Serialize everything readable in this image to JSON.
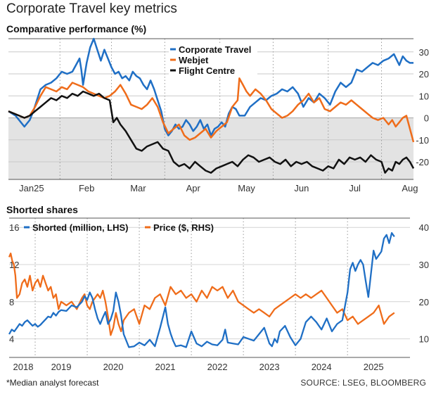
{
  "title": "Corporate Travel key metrics",
  "footnote": "*Median analyst forecast",
  "source": "SOURCE: LSEG, BLOOMBERG",
  "colors": {
    "corporate_travel": "#1f6fc5",
    "webjet": "#ef6c1a",
    "flight_centre": "#111111",
    "shorted": "#1f6fc5",
    "price": "#ef6c1a",
    "negative_band": "#e3e3e3"
  },
  "chart_data": [
    {
      "type": "line",
      "title": "Comparative performance (%)",
      "xlabel": "",
      "ylabel": "",
      "ylim": [
        -28,
        36
      ],
      "x_range": [
        0,
        228
      ],
      "y_ticks": [
        30,
        20,
        10,
        0,
        -10,
        -20
      ],
      "y_tick_labels": [
        "30",
        "20",
        "10",
        "0",
        "-10",
        "-20"
      ],
      "x_ticks": [
        {
          "label": "Jan25",
          "x": 13
        },
        {
          "label": "Feb",
          "x": 44
        },
        {
          "label": "Mar",
          "x": 73
        },
        {
          "label": "Apr",
          "x": 104
        },
        {
          "label": "May",
          "x": 134
        },
        {
          "label": "Jun",
          "x": 165
        },
        {
          "label": "Jul",
          "x": 195
        },
        {
          "label": "Aug",
          "x": 226
        }
      ],
      "month_dividers": [
        29,
        58,
        88,
        119,
        149,
        180,
        210
      ],
      "shade_below_zero": true,
      "legend_position": "top-right",
      "series": [
        {
          "name": "Corporate Travel",
          "color": "#1f6fc5",
          "x": [
            0,
            4,
            7,
            9,
            12,
            14,
            16,
            18,
            21,
            24,
            27,
            30,
            33,
            36,
            38,
            40,
            41,
            42,
            44,
            46,
            48,
            50,
            52,
            54,
            56,
            58,
            60,
            62,
            64,
            66,
            68,
            70,
            72,
            74,
            76,
            78,
            80,
            82,
            84,
            86,
            88,
            90,
            92,
            94,
            96,
            98,
            100,
            102,
            104,
            106,
            108,
            110,
            112,
            114,
            116,
            118,
            120,
            122,
            124,
            126,
            128,
            130,
            133,
            136,
            139,
            142,
            145,
            148,
            151,
            154,
            157,
            160,
            163,
            166,
            169,
            172,
            175,
            178,
            181,
            184,
            187,
            190,
            193,
            196,
            199,
            202,
            205,
            208,
            211,
            214,
            217,
            220,
            222,
            224,
            226,
            228
          ],
          "values": [
            3,
            1,
            -2,
            -4,
            -1,
            3,
            8,
            13,
            15,
            16,
            18,
            21,
            20,
            21,
            24,
            27,
            22,
            15,
            25,
            32,
            36,
            31,
            26,
            31,
            27,
            23,
            20,
            21,
            18,
            19,
            17,
            21,
            19,
            18,
            15,
            13,
            17,
            13,
            8,
            3,
            -5,
            -8,
            -6,
            -3,
            -5,
            -4,
            -1,
            -3,
            -6,
            -4,
            -1,
            -5,
            -3,
            -8,
            -5,
            -4,
            -2,
            -4,
            2,
            5,
            4,
            1,
            1,
            5,
            7,
            9,
            8,
            10,
            11,
            13,
            12,
            14,
            11,
            5,
            9,
            7,
            11,
            9,
            6,
            12,
            16,
            14,
            16,
            22,
            21,
            23,
            25,
            24,
            26,
            27,
            29,
            24,
            28,
            26,
            25,
            25
          ]
        },
        {
          "name": "Webjet",
          "color": "#ef6c1a",
          "x": [
            0,
            3,
            6,
            9,
            12,
            15,
            18,
            21,
            24,
            27,
            30,
            33,
            36,
            39,
            42,
            45,
            48,
            51,
            54,
            57,
            60,
            63,
            66,
            69,
            72,
            75,
            78,
            81,
            84,
            87,
            90,
            93,
            96,
            99,
            102,
            105,
            108,
            111,
            114,
            117,
            120,
            123,
            126,
            129,
            130,
            132,
            134,
            136,
            139,
            142,
            145,
            148,
            151,
            154,
            157,
            160,
            163,
            166,
            169,
            172,
            175,
            178,
            181,
            184,
            187,
            190,
            193,
            196,
            199,
            202,
            205,
            208,
            211,
            214,
            216,
            218,
            220,
            222,
            224,
            226,
            228
          ],
          "values": [
            3,
            2,
            1,
            0,
            1,
            5,
            10,
            14,
            13,
            12,
            14,
            13,
            16,
            15,
            14,
            12,
            11,
            10,
            9,
            10,
            12,
            15,
            11,
            6,
            5,
            4,
            6,
            9,
            5,
            -2,
            -7,
            -5,
            -3,
            -8,
            -10,
            -9,
            -7,
            -5,
            -9,
            -6,
            -4,
            -2,
            5,
            8,
            18,
            15,
            12,
            10,
            13,
            11,
            8,
            4,
            2,
            0,
            1,
            3,
            6,
            8,
            11,
            7,
            9,
            4,
            3,
            5,
            7,
            6,
            8,
            6,
            4,
            2,
            0,
            -1,
            0,
            -3,
            -1,
            -4,
            -2,
            0,
            1,
            -5,
            -11
          ]
        },
        {
          "name": "Flight Centre",
          "color": "#111111",
          "x": [
            0,
            3,
            6,
            9,
            12,
            15,
            18,
            21,
            24,
            27,
            30,
            33,
            36,
            39,
            42,
            45,
            48,
            51,
            54,
            57,
            59,
            61,
            63,
            66,
            69,
            72,
            75,
            78,
            81,
            84,
            87,
            90,
            93,
            96,
            99,
            102,
            105,
            108,
            111,
            114,
            117,
            120,
            123,
            126,
            129,
            132,
            135,
            138,
            141,
            144,
            147,
            150,
            153,
            156,
            159,
            162,
            165,
            168,
            171,
            174,
            177,
            180,
            183,
            186,
            189,
            192,
            195,
            198,
            201,
            204,
            207,
            210,
            212,
            214,
            216,
            218,
            220,
            222,
            224,
            226,
            228
          ],
          "values": [
            3,
            2,
            1,
            0,
            1,
            3,
            5,
            7,
            9,
            8,
            10,
            9,
            11,
            10,
            12,
            11,
            10,
            11,
            9,
            8,
            -2,
            0,
            -3,
            -6,
            -10,
            -14,
            -15,
            -13,
            -12,
            -11,
            -14,
            -15,
            -20,
            -22,
            -21,
            -23,
            -20,
            -22,
            -24,
            -25,
            -23,
            -22,
            -21,
            -20,
            -22,
            -19,
            -17,
            -18,
            -20,
            -19,
            -18,
            -20,
            -21,
            -19,
            -22,
            -20,
            -21,
            -20,
            -22,
            -23,
            -24,
            -22,
            -23,
            -19,
            -21,
            -18,
            -19,
            -18,
            -20,
            -17,
            -19,
            -20,
            -25,
            -23,
            -24,
            -20,
            -21,
            -19,
            -18,
            -20,
            -23
          ]
        }
      ]
    },
    {
      "type": "line",
      "title": "Shorted shares",
      "xlabel": "",
      "ylabel": "",
      "x_range": [
        2018.0,
        2025.7
      ],
      "ylim_left": [
        2,
        17
      ],
      "ylim_right": [
        5,
        42.5
      ],
      "y_ticks_left": [
        16,
        12,
        8,
        4
      ],
      "y_tick_labels_left": [
        "16",
        "12",
        "8",
        "4"
      ],
      "y_ticks_right": [
        40,
        30,
        20,
        10
      ],
      "y_tick_labels_right": [
        "40",
        "30",
        "20",
        "10"
      ],
      "x_ticks": [
        {
          "label": "2018",
          "x": 2018.0
        },
        {
          "label": "2019",
          "x": 2019.0
        },
        {
          "label": "2020",
          "x": 2020.0
        },
        {
          "label": "2021",
          "x": 2021.0
        },
        {
          "label": "2022",
          "x": 2022.0
        },
        {
          "label": "2023",
          "x": 2023.0
        },
        {
          "label": "2024",
          "x": 2024.0
        },
        {
          "label": "2025",
          "x": 2025.0
        }
      ],
      "year_dividers": [
        2018.5,
        2019.5,
        2020.5,
        2021.5,
        2022.5,
        2023.5,
        2024.5
      ],
      "legend_position": "top-left",
      "series": [
        {
          "name": "Shorted (million, LHS)",
          "color": "#1f6fc5",
          "axis": "left",
          "x": [
            2018.0,
            2018.05,
            2018.1,
            2018.15,
            2018.2,
            2018.25,
            2018.3,
            2018.35,
            2018.4,
            2018.45,
            2018.5,
            2018.55,
            2018.6,
            2018.65,
            2018.7,
            2018.75,
            2018.8,
            2018.85,
            2018.9,
            2018.95,
            2019.0,
            2019.1,
            2019.2,
            2019.3,
            2019.4,
            2019.45,
            2019.5,
            2019.55,
            2019.6,
            2019.65,
            2019.7,
            2019.75,
            2019.8,
            2019.85,
            2019.9,
            2019.95,
            2020.0,
            2020.05,
            2020.1,
            2020.15,
            2020.2,
            2020.3,
            2020.4,
            2020.5,
            2020.6,
            2020.7,
            2020.8,
            2020.9,
            2021.0,
            2021.05,
            2021.1,
            2021.15,
            2021.2,
            2021.3,
            2021.4,
            2021.5,
            2021.6,
            2021.7,
            2021.8,
            2021.9,
            2022.0,
            2022.1,
            2022.15,
            2022.2,
            2022.3,
            2022.4,
            2022.5,
            2022.6,
            2022.7,
            2022.8,
            2022.9,
            2023.0,
            2023.05,
            2023.1,
            2023.15,
            2023.2,
            2023.3,
            2023.4,
            2023.5,
            2023.6,
            2023.7,
            2023.8,
            2023.9,
            2024.0,
            2024.1,
            2024.2,
            2024.3,
            2024.4,
            2024.45,
            2024.5,
            2024.55,
            2024.6,
            2024.65,
            2024.7,
            2024.75,
            2024.8,
            2024.85,
            2024.9,
            2024.95,
            2025.0,
            2025.05,
            2025.1,
            2025.15,
            2025.2,
            2025.25,
            2025.3,
            2025.35,
            2025.4
          ],
          "values": [
            4.5,
            5.0,
            4.8,
            5.2,
            5.6,
            5.4,
            5.8,
            6.0,
            5.7,
            5.4,
            5.6,
            5.3,
            5.5,
            5.8,
            6.1,
            6.4,
            6.3,
            6.8,
            6.5,
            6.9,
            7.1,
            7.0,
            7.6,
            7.4,
            8.0,
            8.6,
            8.2,
            9.0,
            8.4,
            7.2,
            6.2,
            5.6,
            6.3,
            6.9,
            5.6,
            6.1,
            7.0,
            9.0,
            8.0,
            6.5,
            4.5,
            3.1,
            3.2,
            3.6,
            3.3,
            3.9,
            3.2,
            5.2,
            7.4,
            5.6,
            4.6,
            3.8,
            3.2,
            3.3,
            3.1,
            4.8,
            3.5,
            3.2,
            3.7,
            3.4,
            3.3,
            3.9,
            5.0,
            3.6,
            3.5,
            3.4,
            4.2,
            4.0,
            3.8,
            4.5,
            5.2,
            3.5,
            3.2,
            4.0,
            3.6,
            4.8,
            5.4,
            4.2,
            3.3,
            4.0,
            5.8,
            6.4,
            5.8,
            5.0,
            6.2,
            4.8,
            5.6,
            6.0,
            7.5,
            9.0,
            11.5,
            12.2,
            11.3,
            12.0,
            12.5,
            12.0,
            10.2,
            8.5,
            11.0,
            13.5,
            12.6,
            13.0,
            13.4,
            14.8,
            15.2,
            14.3,
            15.4,
            15.0
          ]
        },
        {
          "name": "Price ($, RHS)",
          "color": "#ef6c1a",
          "axis": "right",
          "x": [
            2018.0,
            2018.03,
            2018.06,
            2018.09,
            2018.12,
            2018.15,
            2018.2,
            2018.25,
            2018.3,
            2018.35,
            2018.4,
            2018.45,
            2018.5,
            2018.55,
            2018.6,
            2018.65,
            2018.7,
            2018.75,
            2018.8,
            2018.85,
            2018.9,
            2018.95,
            2019.0,
            2019.1,
            2019.2,
            2019.3,
            2019.4,
            2019.45,
            2019.5,
            2019.55,
            2019.6,
            2019.65,
            2019.7,
            2019.75,
            2019.8,
            2019.85,
            2019.9,
            2019.95,
            2020.0,
            2020.05,
            2020.1,
            2020.15,
            2020.2,
            2020.3,
            2020.4,
            2020.5,
            2020.6,
            2020.7,
            2020.8,
            2020.9,
            2021.0,
            2021.1,
            2021.2,
            2021.3,
            2021.4,
            2021.5,
            2021.6,
            2021.7,
            2021.8,
            2021.9,
            2022.0,
            2022.1,
            2022.2,
            2022.3,
            2022.4,
            2022.5,
            2022.6,
            2022.7,
            2022.8,
            2022.9,
            2023.0,
            2023.1,
            2023.2,
            2023.3,
            2023.4,
            2023.5,
            2023.6,
            2023.7,
            2023.8,
            2023.9,
            2024.0,
            2024.1,
            2024.2,
            2024.3,
            2024.4,
            2024.5,
            2024.6,
            2024.7,
            2024.8,
            2024.9,
            2025.0,
            2025.1,
            2025.2,
            2025.3,
            2025.4
          ],
          "values": [
            32,
            33,
            31,
            30,
            27,
            21,
            22,
            25,
            26,
            24,
            27,
            23,
            25,
            26,
            24,
            27,
            25,
            23,
            24,
            21,
            22,
            18,
            20,
            19,
            20,
            18,
            21,
            22,
            19,
            18,
            20,
            21,
            22,
            21,
            23,
            20,
            16,
            11,
            13,
            17,
            14,
            12,
            15,
            17,
            18,
            14,
            19,
            18,
            21,
            22,
            19,
            24,
            22,
            23,
            21,
            22,
            20,
            23,
            21,
            24,
            23,
            24,
            21,
            23,
            20,
            19,
            18,
            17,
            18,
            17,
            16,
            18,
            19,
            20,
            21,
            22,
            21,
            22,
            21,
            22,
            23,
            21,
            19,
            17,
            18,
            15,
            16,
            14,
            15,
            16,
            17,
            19,
            14,
            16,
            17
          ]
        }
      ]
    }
  ]
}
